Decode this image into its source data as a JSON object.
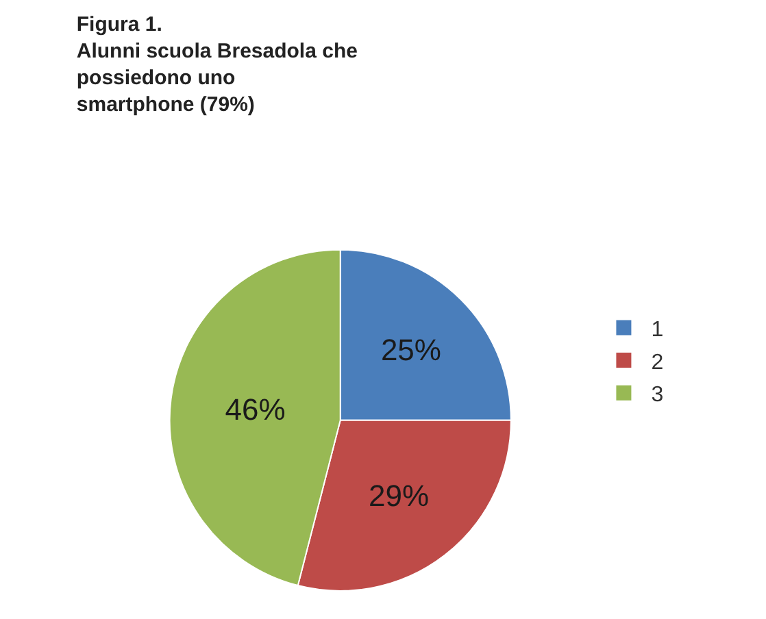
{
  "chart_data": {
    "type": "pie",
    "title": "Figura 1.\nAlunni scuola Bresadola che\npossiedono uno\nsmartphone (79%)",
    "categories": [
      "1",
      "2",
      "3"
    ],
    "values": [
      25,
      29,
      46
    ],
    "value_labels": [
      "25%",
      "29%",
      "46%"
    ],
    "colors": [
      "#4a7ebb",
      "#be4b48",
      "#98b954"
    ],
    "legend": "right"
  }
}
